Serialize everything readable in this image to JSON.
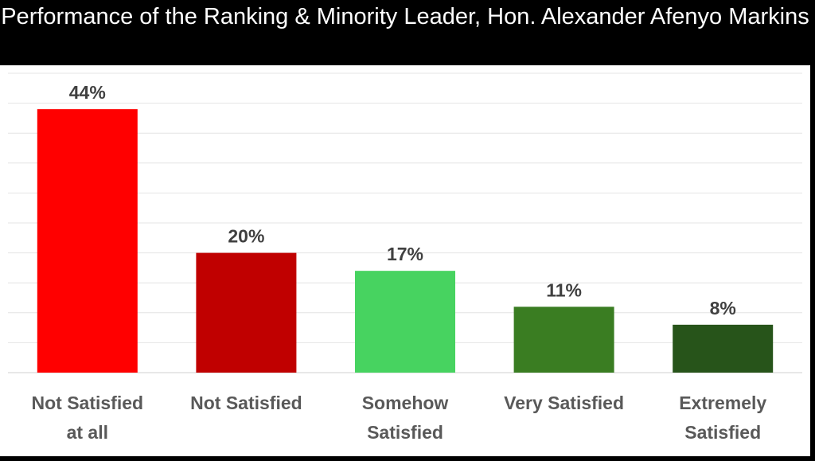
{
  "chart_data": {
    "type": "bar",
    "title": "Performance of the Ranking & Minority Leader, Hon. Alexander Afenyo Markins",
    "categories": [
      [
        "Not Satisfied",
        "at all"
      ],
      [
        "Not Satisfied"
      ],
      [
        "Somehow",
        "Satisfied"
      ],
      [
        "Very Satisfied"
      ],
      [
        "Extremely",
        "Satisfied"
      ]
    ],
    "values": [
      44,
      20,
      17,
      11,
      8
    ],
    "value_labels": [
      "44%",
      "20%",
      "17%",
      "11%",
      "8%"
    ],
    "colors": [
      "#ff0000",
      "#c00000",
      "#47d360",
      "#3a7d22",
      "#27541a"
    ],
    "ylim": [
      0,
      50
    ],
    "grid": true,
    "legend": "none",
    "xlabel": "",
    "ylabel": ""
  }
}
